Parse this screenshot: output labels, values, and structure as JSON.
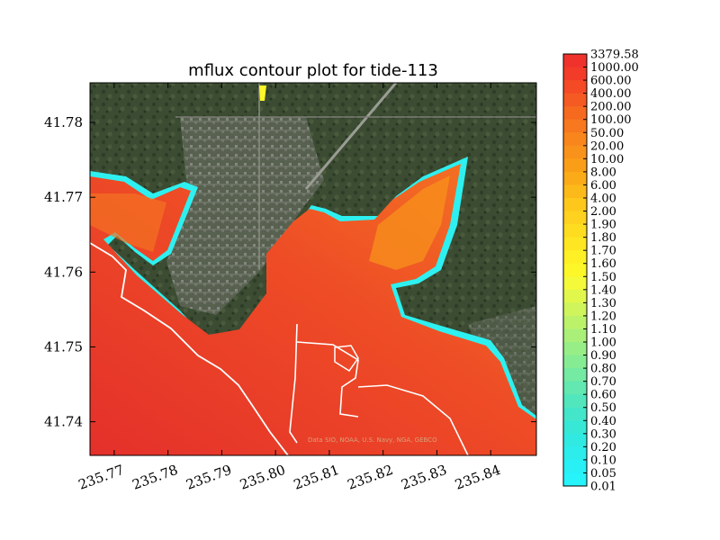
{
  "chart_data": {
    "type": "heatmap",
    "title": "mflux contour plot for tide-113",
    "xlabel": "",
    "ylabel": "",
    "xlim": [
      235.7655,
      235.8485
    ],
    "ylim": [
      41.7355,
      41.7853
    ],
    "x_ticks": [
      "235.77",
      "235.78",
      "235.79",
      "235.80",
      "235.81",
      "235.82",
      "235.83",
      "235.84"
    ],
    "x_tick_values": [
      235.77,
      235.78,
      235.79,
      235.8,
      235.81,
      235.82,
      235.83,
      235.84
    ],
    "y_ticks": [
      "41.74",
      "41.75",
      "41.76",
      "41.77",
      "41.78"
    ],
    "y_tick_values": [
      41.74,
      41.75,
      41.76,
      41.77,
      41.78
    ],
    "colorbar": {
      "levels": [
        "3379.58",
        "1000.00",
        "600.00",
        "400.00",
        "200.00",
        "100.00",
        "50.00",
        "20.00",
        "10.00",
        "8.00",
        "6.00",
        "4.00",
        "2.00",
        "1.90",
        "1.80",
        "1.70",
        "1.60",
        "1.50",
        "1.40",
        "1.30",
        "1.20",
        "1.10",
        "1.00",
        "0.90",
        "0.80",
        "0.70",
        "0.60",
        "0.50",
        "0.40",
        "0.30",
        "0.20",
        "0.10",
        "0.05",
        "0.01"
      ],
      "colors": [
        "#f0322d",
        "#f23b28",
        "#f44a25",
        "#f55a22",
        "#f66a20",
        "#f7781e",
        "#f8861c",
        "#f9921a",
        "#fa9e18",
        "#fbab18",
        "#fcb91a",
        "#fdc71c",
        "#fed21e",
        "#fedd20",
        "#fee722",
        "#fef024",
        "#fdf628",
        "#f4f93a",
        "#e2f74c",
        "#cff45c",
        "#bcf26a",
        "#aaf078",
        "#98ee86",
        "#86ec94",
        "#74eaa2",
        "#62e8b0",
        "#52e6bd",
        "#44e6ca",
        "#38e8d6",
        "#30eae2",
        "#2cedec",
        "#28f0f4",
        "#26f3fa"
      ]
    },
    "background": "satellite imagery",
    "attribution": "Data SIO, NOAA, U.S. Navy, NGA, GEBCO"
  },
  "colors": {
    "water_deep": "#e8322a",
    "water_mid": "#f26024",
    "water_edge": "#2ef0f0",
    "land": "#3b4c32",
    "coastline": "#ffffff"
  }
}
